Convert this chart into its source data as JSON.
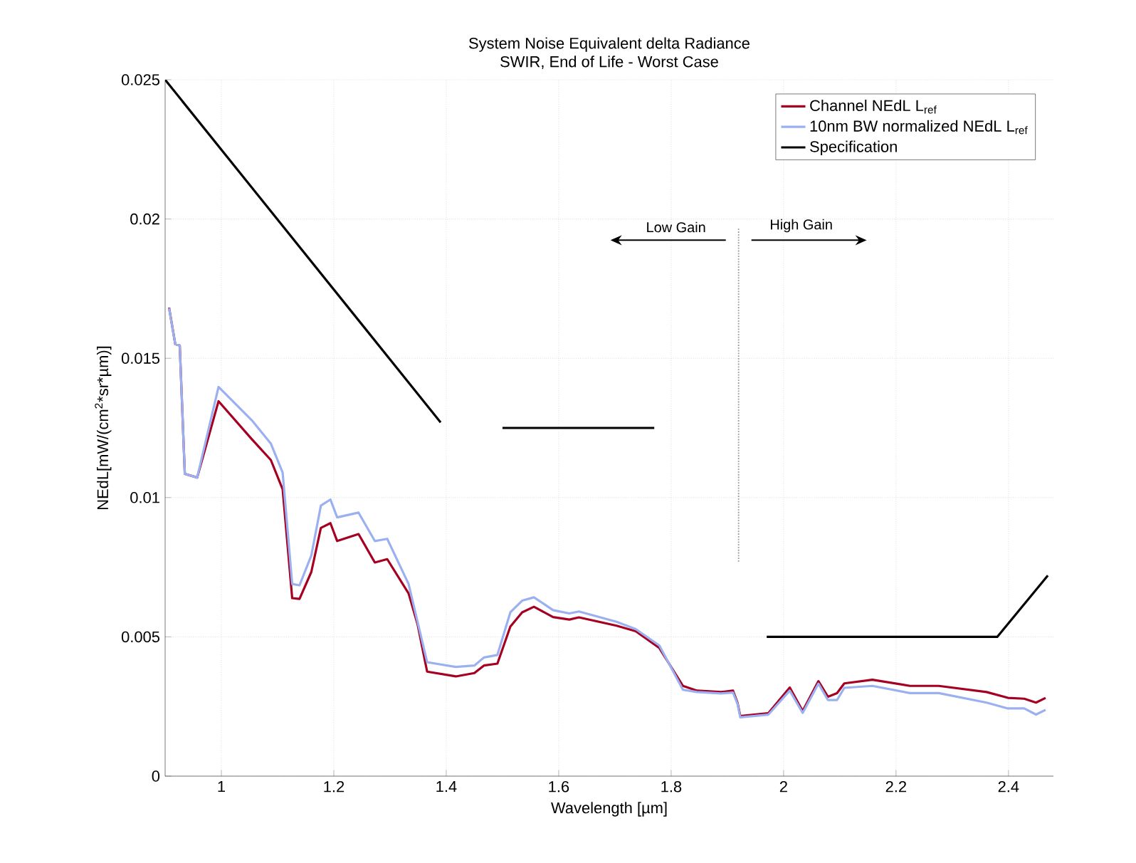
{
  "chart_data": {
    "type": "line",
    "title": "System Noise Equivalent delta Radiance",
    "subtitle": "SWIR, End of Life - Worst Case",
    "xlabel": "Wavelength [µm]",
    "ylabel": "NEdL[mW/(cm$^{2}$*sr*µm)]",
    "xlim": [
      0.9,
      2.48
    ],
    "ylim": [
      0,
      0.025
    ],
    "xticks": [
      1,
      1.2,
      1.4,
      1.6,
      1.8,
      2,
      2.2,
      2.4
    ],
    "yticks": [
      0,
      0.005,
      0.01,
      0.015,
      0.02,
      0.025
    ],
    "grid": true,
    "legend": "top right",
    "line_style": "solid",
    "marker": "none",
    "x": [
      0.907,
      0.918,
      0.926,
      0.935,
      0.957,
      0.995,
      1.054,
      1.088,
      1.109,
      1.126,
      1.139,
      1.16,
      1.177,
      1.194,
      1.206,
      1.244,
      1.273,
      1.295,
      1.333,
      1.349,
      1.366,
      1.417,
      1.45,
      1.467,
      1.491,
      1.514,
      1.535,
      1.556,
      1.59,
      1.619,
      1.636,
      1.703,
      1.737,
      1.779,
      1.821,
      1.846,
      1.889,
      1.91,
      1.918,
      1.923,
      1.973,
      2.011,
      2.034,
      2.062,
      2.079,
      2.095,
      2.108,
      2.158,
      2.225,
      2.276,
      2.361,
      2.399,
      2.428,
      2.449,
      2.466
    ],
    "series": [
      {
        "name": "10nm BW normalized NEdL L$_{ref}$",
        "color": "#9bb0f0",
        "values": [
          0.0168,
          0.01551,
          0.01546,
          0.01085,
          0.01072,
          0.01397,
          0.01278,
          0.01194,
          0.0109,
          0.0069,
          0.00685,
          0.00792,
          0.00971,
          0.00993,
          0.00929,
          0.00946,
          0.00844,
          0.00852,
          0.0069,
          0.00554,
          0.00409,
          0.00392,
          0.00397,
          0.00426,
          0.00435,
          0.00588,
          0.0063,
          0.00642,
          0.00596,
          0.00584,
          0.00591,
          0.00554,
          0.00528,
          0.00469,
          0.0031,
          0.00302,
          0.00297,
          0.003,
          0.0026,
          0.00211,
          0.00221,
          0.00307,
          0.00227,
          0.00332,
          0.00273,
          0.00273,
          0.00317,
          0.00324,
          0.00298,
          0.00298,
          0.00264,
          0.00243,
          0.00243,
          0.00221,
          0.00238
        ]
      },
      {
        "name": "Channel NEdL  L$_{ref}$",
        "color": "#a50021",
        "values": [
          0.01682,
          0.01551,
          0.01546,
          0.01085,
          0.01072,
          0.01346,
          0.0121,
          0.01135,
          0.0103,
          0.00639,
          0.00636,
          0.00733,
          0.00891,
          0.00908,
          0.00844,
          0.00869,
          0.00767,
          0.00779,
          0.00656,
          0.00545,
          0.00375,
          0.00358,
          0.0037,
          0.00397,
          0.00404,
          0.00537,
          0.00588,
          0.00608,
          0.00571,
          0.00562,
          0.0057,
          0.0054,
          0.0052,
          0.0046,
          0.00324,
          0.00307,
          0.00302,
          0.00307,
          0.00264,
          0.00216,
          0.00226,
          0.00318,
          0.00234,
          0.00341,
          0.00285,
          0.00298,
          0.00333,
          0.00346,
          0.00324,
          0.00324,
          0.00302,
          0.00281,
          0.00278,
          0.00264,
          0.00281
        ]
      },
      {
        "name": "Specification",
        "color": "#000000",
        "x": [
          0.9,
          1.39,
          1.44,
          1.5,
          1.77,
          1.87,
          1.97,
          2.38,
          2.47
        ],
        "values": [
          0.025,
          0.0127,
          null,
          0.0125,
          0.0125,
          null,
          0.005,
          0.005,
          0.0072
        ]
      },
      {
        "color": "#999999",
        "line_style": "dotted",
        "x": [
          1.92,
          1.92
        ],
        "values": [
          0.0077,
          0.0197
        ]
      }
    ],
    "annotations": [
      "Low Gain",
      "High Gain"
    ]
  }
}
